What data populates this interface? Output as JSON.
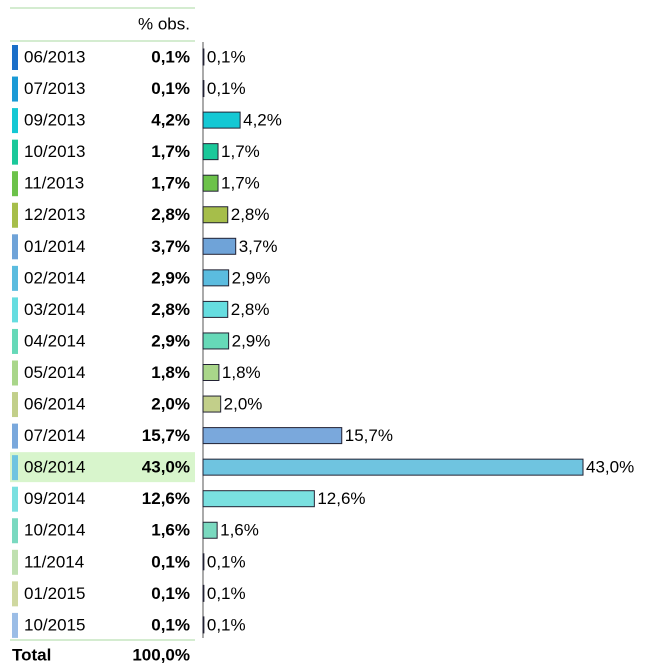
{
  "chart_data": {
    "type": "bar",
    "column_header": "% obs.",
    "categories": [
      "06/2013",
      "07/2013",
      "09/2013",
      "10/2013",
      "11/2013",
      "12/2013",
      "01/2014",
      "02/2014",
      "03/2014",
      "04/2014",
      "05/2014",
      "06/2014",
      "07/2014",
      "08/2014",
      "09/2014",
      "10/2014",
      "11/2014",
      "01/2015",
      "10/2015"
    ],
    "values": [
      0.1,
      0.1,
      4.2,
      1.7,
      1.7,
      2.8,
      3.7,
      2.9,
      2.8,
      2.9,
      1.8,
      2.0,
      15.7,
      43.0,
      12.6,
      1.6,
      0.1,
      0.1,
      0.1
    ],
    "value_labels": [
      "0,1%",
      "0,1%",
      "4,2%",
      "1,7%",
      "1,7%",
      "2,8%",
      "3,7%",
      "2,9%",
      "2,8%",
      "2,9%",
      "1,8%",
      "2,0%",
      "15,7%",
      "43,0%",
      "12,6%",
      "1,6%",
      "0,1%",
      "0,1%",
      "0,1%"
    ],
    "colors": [
      "#1a6fc9",
      "#1a9ad6",
      "#14c8d4",
      "#1ac89a",
      "#6cc24a",
      "#a6be4a",
      "#6fa3d8",
      "#5bbcdf",
      "#66dde0",
      "#66d9b8",
      "#a9d68a",
      "#c2cf8a",
      "#7aa8dc",
      "#6fc4e0",
      "#7ae0e0",
      "#7ad9c0",
      "#bfe0b0",
      "#cfd8a0",
      "#9bbde6"
    ],
    "highlight": "08/2014",
    "total_label": "Total",
    "total_value_label": "100,0%"
  }
}
